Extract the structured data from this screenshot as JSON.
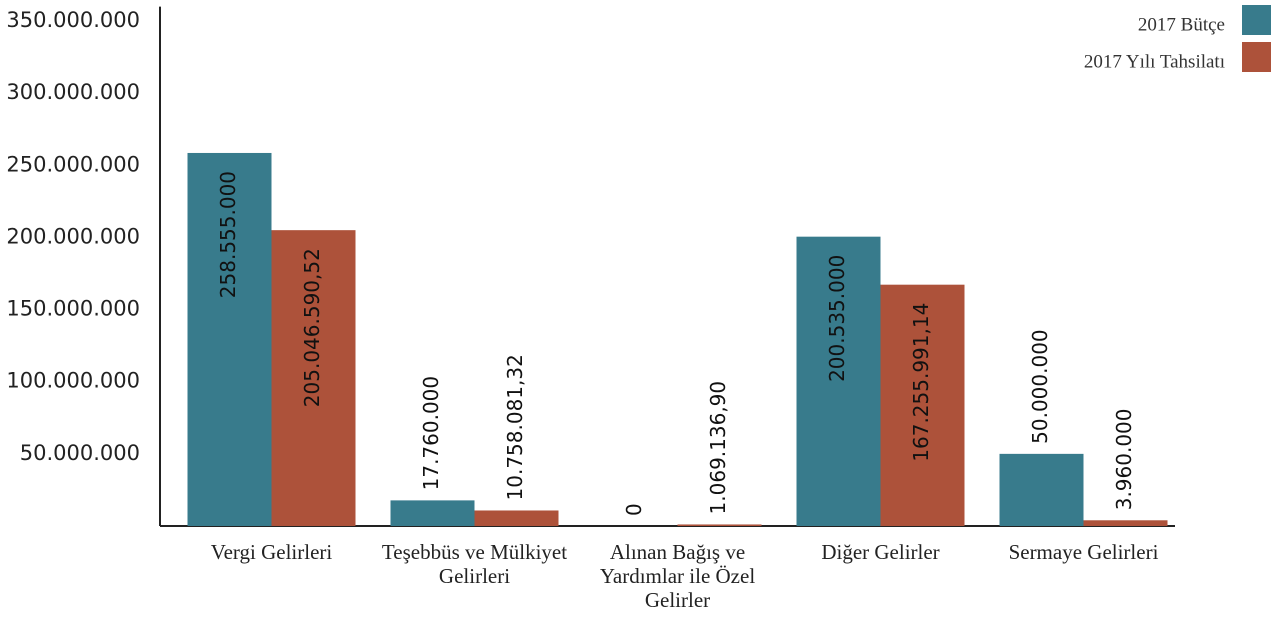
{
  "chart_data": {
    "type": "bar",
    "categories": [
      "Vergi Gelirleri",
      "Teşebbüs ve Mülkiyet Gelirleri",
      "Alınan Bağış ve Yardımlar ile Özel Gelirler",
      "Diğer Gelirler",
      "Sermaye Gelirleri"
    ],
    "series": [
      {
        "name": "2017 Bütçe",
        "color": "#387b8c",
        "values": [
          258555000,
          17760000,
          0,
          200535000,
          50000000
        ],
        "value_labels": [
          "258.555.000",
          "17.760.000",
          "0",
          "200.535.000",
          "50.000.000"
        ]
      },
      {
        "name": "2017 Yılı Tahsilatı",
        "color": "#ad523a",
        "values": [
          205046590.52,
          10758081.32,
          1069136.9,
          167255991.14,
          3960000
        ],
        "value_labels": [
          "205.046.590,52",
          "10.758.081,32",
          "1.069.136,90",
          "167.255.991,14",
          "3.960.000"
        ]
      }
    ],
    "ylim": [
      0,
      360000000
    ],
    "yticks": [
      {
        "value": 50000000,
        "label": "50.000.000"
      },
      {
        "value": 100000000,
        "label": "100.000.000"
      },
      {
        "value": 150000000,
        "label": "150.000.000"
      },
      {
        "value": 200000000,
        "label": "200.000.000"
      },
      {
        "value": 250000000,
        "label": "250.000.000"
      },
      {
        "value": 300000000,
        "label": "300.000.000"
      },
      {
        "value": 350000000,
        "label": "350.000.000"
      }
    ],
    "legend": "top-right",
    "grid": false
  }
}
